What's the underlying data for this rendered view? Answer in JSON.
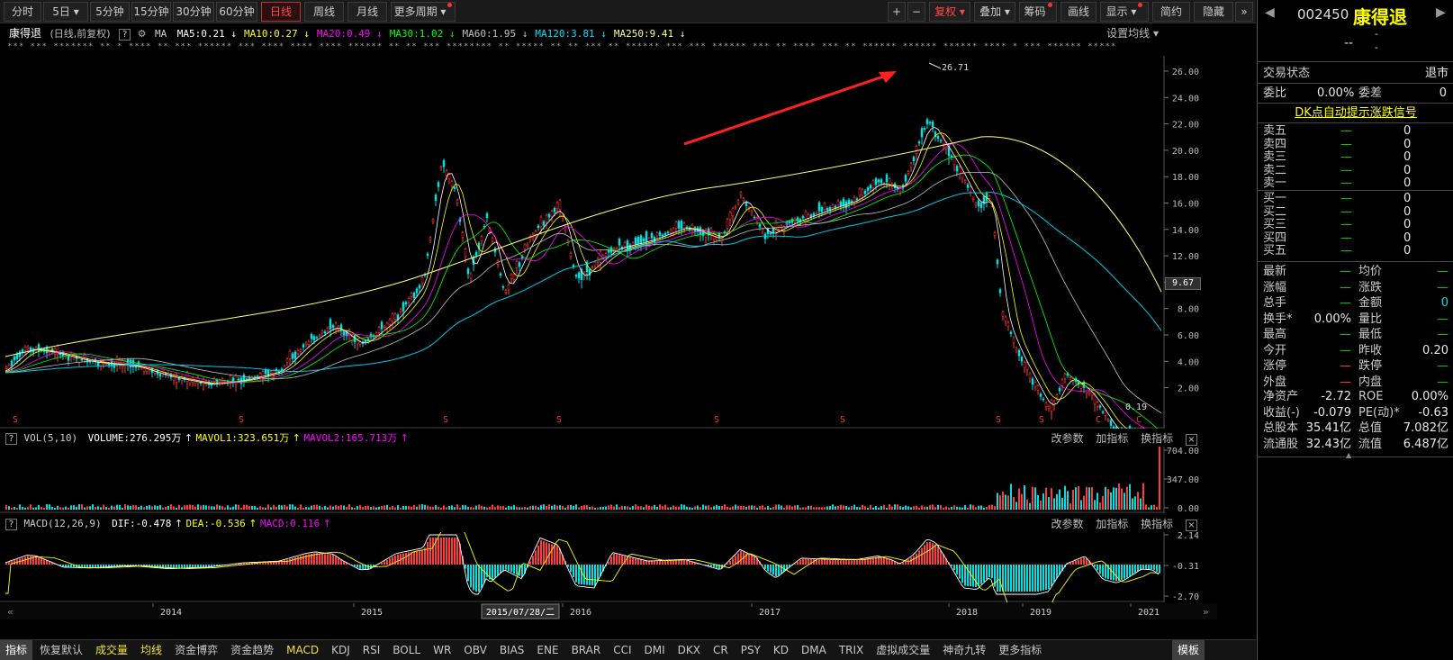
{
  "toolbar": {
    "periods": [
      "分时",
      "5日",
      "5分钟",
      "15分钟",
      "30分钟",
      "60分钟",
      "日线",
      "周线",
      "月线",
      "更多周期"
    ],
    "active_period": "日线",
    "right": [
      "+",
      "−",
      "复权",
      "叠加",
      "筹码",
      "画线",
      "显示",
      "简约",
      "隐藏"
    ],
    "expand_icon": "double-chevron-right-icon"
  },
  "title_row": {
    "name": "康得退",
    "mode": "(日线,前复权)",
    "ma_label": "MA",
    "ma": [
      {
        "text": "MA5:0.21",
        "color": "#ffffff"
      },
      {
        "text": "MA10:0.27",
        "color": "#ffff00"
      },
      {
        "text": "MA20:0.49",
        "color": "#ff00ff"
      },
      {
        "text": "MA30:1.02",
        "color": "#00ff00"
      },
      {
        "text": "MA60:1.95",
        "color": "#c0c0c0"
      },
      {
        "text": "MA120:3.81",
        "color": "#00e0ff"
      },
      {
        "text": "MA250:9.41",
        "color": "#ffff80"
      }
    ],
    "settings": "设置均线"
  },
  "noise_text": "*** *** *******  ** *  **** ** *** ******  *** ****  **** **** ****** ** ** ***  ******** **  ***** ** ** *** **  ****** *** ***  ******  *** ** ****  *** ** ****** ****** ****** **** * *** ****** *****",
  "main_chart": {
    "y_ticks": [
      "26.00",
      "24.00",
      "22.00",
      "20.00",
      "18.00",
      "16.00",
      "14.00",
      "12.00",
      "10.00",
      "8.00",
      "6.00",
      "4.00",
      "2.00"
    ],
    "current_price_label": "9.67",
    "high_label": "26.71",
    "low_label": "0.19",
    "s_markers": [
      "S",
      "S",
      "S",
      "S",
      "S",
      "S",
      "S",
      "S",
      "C",
      "C",
      "C"
    ]
  },
  "vol_panel": {
    "label": "VOL(5,10)",
    "volume": "VOLUME:276.295万",
    "mavol1": "MAVOL1:323.651万",
    "mavol2": "MAVOL2:165.713万",
    "y_ticks": [
      "704.00",
      "347.00",
      "0.00"
    ],
    "actions": [
      "改参数",
      "加指标",
      "换指标"
    ]
  },
  "macd_panel": {
    "label": "MACD(12,26,9)",
    "dif": "DIF:-0.478",
    "dea": "DEA:-0.536",
    "macd": "MACD:0.116",
    "y_ticks": [
      "2.14",
      "-0.31",
      "-2.70"
    ],
    "actions": [
      "改参数",
      "加指标",
      "换指标"
    ]
  },
  "x_axis": {
    "labels": [
      "2014",
      "2015",
      "2016",
      "2017",
      "2018",
      "2019",
      "2021"
    ],
    "cursor_date": "2015/07/28/二"
  },
  "tabs": [
    "指标",
    "恢复默认",
    "成交量",
    "均线",
    "资金博弈",
    "资金趋势",
    "MACD",
    "KDJ",
    "RSI",
    "BOLL",
    "WR",
    "OBV",
    "BIAS",
    "ENE",
    "BRAR",
    "CCI",
    "DMI",
    "DKX",
    "CR",
    "PSY",
    "KD",
    "DMA",
    "TRIX",
    "虚拟成交量",
    "神奇九转",
    "更多指标",
    "模板"
  ],
  "side": {
    "code": "002450",
    "name": "康得退",
    "price": "--",
    "change": "-",
    "change_pct": "-",
    "status_label": "交易状态",
    "status_value": "退市",
    "weibi_label": "委比",
    "weibi_value": "0.00%",
    "weicha_label": "委差",
    "weicha_value": "0",
    "signal_link": "DK点自动提示涨跌信号",
    "sell": [
      {
        "label": "卖五",
        "price": "—",
        "vol": "0"
      },
      {
        "label": "卖四",
        "price": "—",
        "vol": "0"
      },
      {
        "label": "卖三",
        "price": "—",
        "vol": "0"
      },
      {
        "label": "卖二",
        "price": "—",
        "vol": "0"
      },
      {
        "label": "卖一",
        "price": "—",
        "vol": "0"
      }
    ],
    "buy": [
      {
        "label": "买一",
        "price": "—",
        "vol": "0"
      },
      {
        "label": "买二",
        "price": "—",
        "vol": "0"
      },
      {
        "label": "买三",
        "price": "—",
        "vol": "0"
      },
      {
        "label": "买四",
        "price": "—",
        "vol": "0"
      },
      {
        "label": "买五",
        "price": "—",
        "vol": "0"
      }
    ],
    "stats": [
      {
        "l1": "最新",
        "v1": "—",
        "c1": "grn",
        "l2": "均价",
        "v2": "—",
        "c2": "grn"
      },
      {
        "l1": "涨幅",
        "v1": "—",
        "c1": "grn",
        "l2": "涨跌",
        "v2": "—",
        "c2": "grn"
      },
      {
        "l1": "总手",
        "v1": "—",
        "c1": "grn",
        "l2": "金额",
        "v2": "0",
        "c2": "cyn"
      },
      {
        "l1": "换手*",
        "v1": "0.00%",
        "c1": "wht",
        "l2": "量比",
        "v2": "—",
        "c2": "grn"
      },
      {
        "l1": "最高",
        "v1": "—",
        "c1": "grn",
        "l2": "最低",
        "v2": "—",
        "c2": "grn"
      },
      {
        "l1": "今开",
        "v1": "—",
        "c1": "grn",
        "l2": "昨收",
        "v2": "0.20",
        "c2": "wht"
      },
      {
        "l1": "涨停",
        "v1": "—",
        "c1": "red",
        "l2": "跌停",
        "v2": "—",
        "c2": "grn"
      },
      {
        "l1": "外盘",
        "v1": "—",
        "c1": "red",
        "l2": "内盘",
        "v2": "—",
        "c2": "grn"
      }
    ],
    "fin": [
      {
        "l1": "净资产",
        "v1": "-2.72",
        "l2": "ROE",
        "v2": "0.00%"
      },
      {
        "l1": "收益(-)",
        "v1": "-0.079",
        "l2": "PE(动)*",
        "v2": "-0.63"
      },
      {
        "l1": "总股本",
        "v1": "35.41亿",
        "l2": "总值",
        "v2": "7.082亿"
      },
      {
        "l1": "流通股",
        "v1": "32.43亿",
        "l2": "流值",
        "v2": "6.487亿"
      }
    ]
  }
}
